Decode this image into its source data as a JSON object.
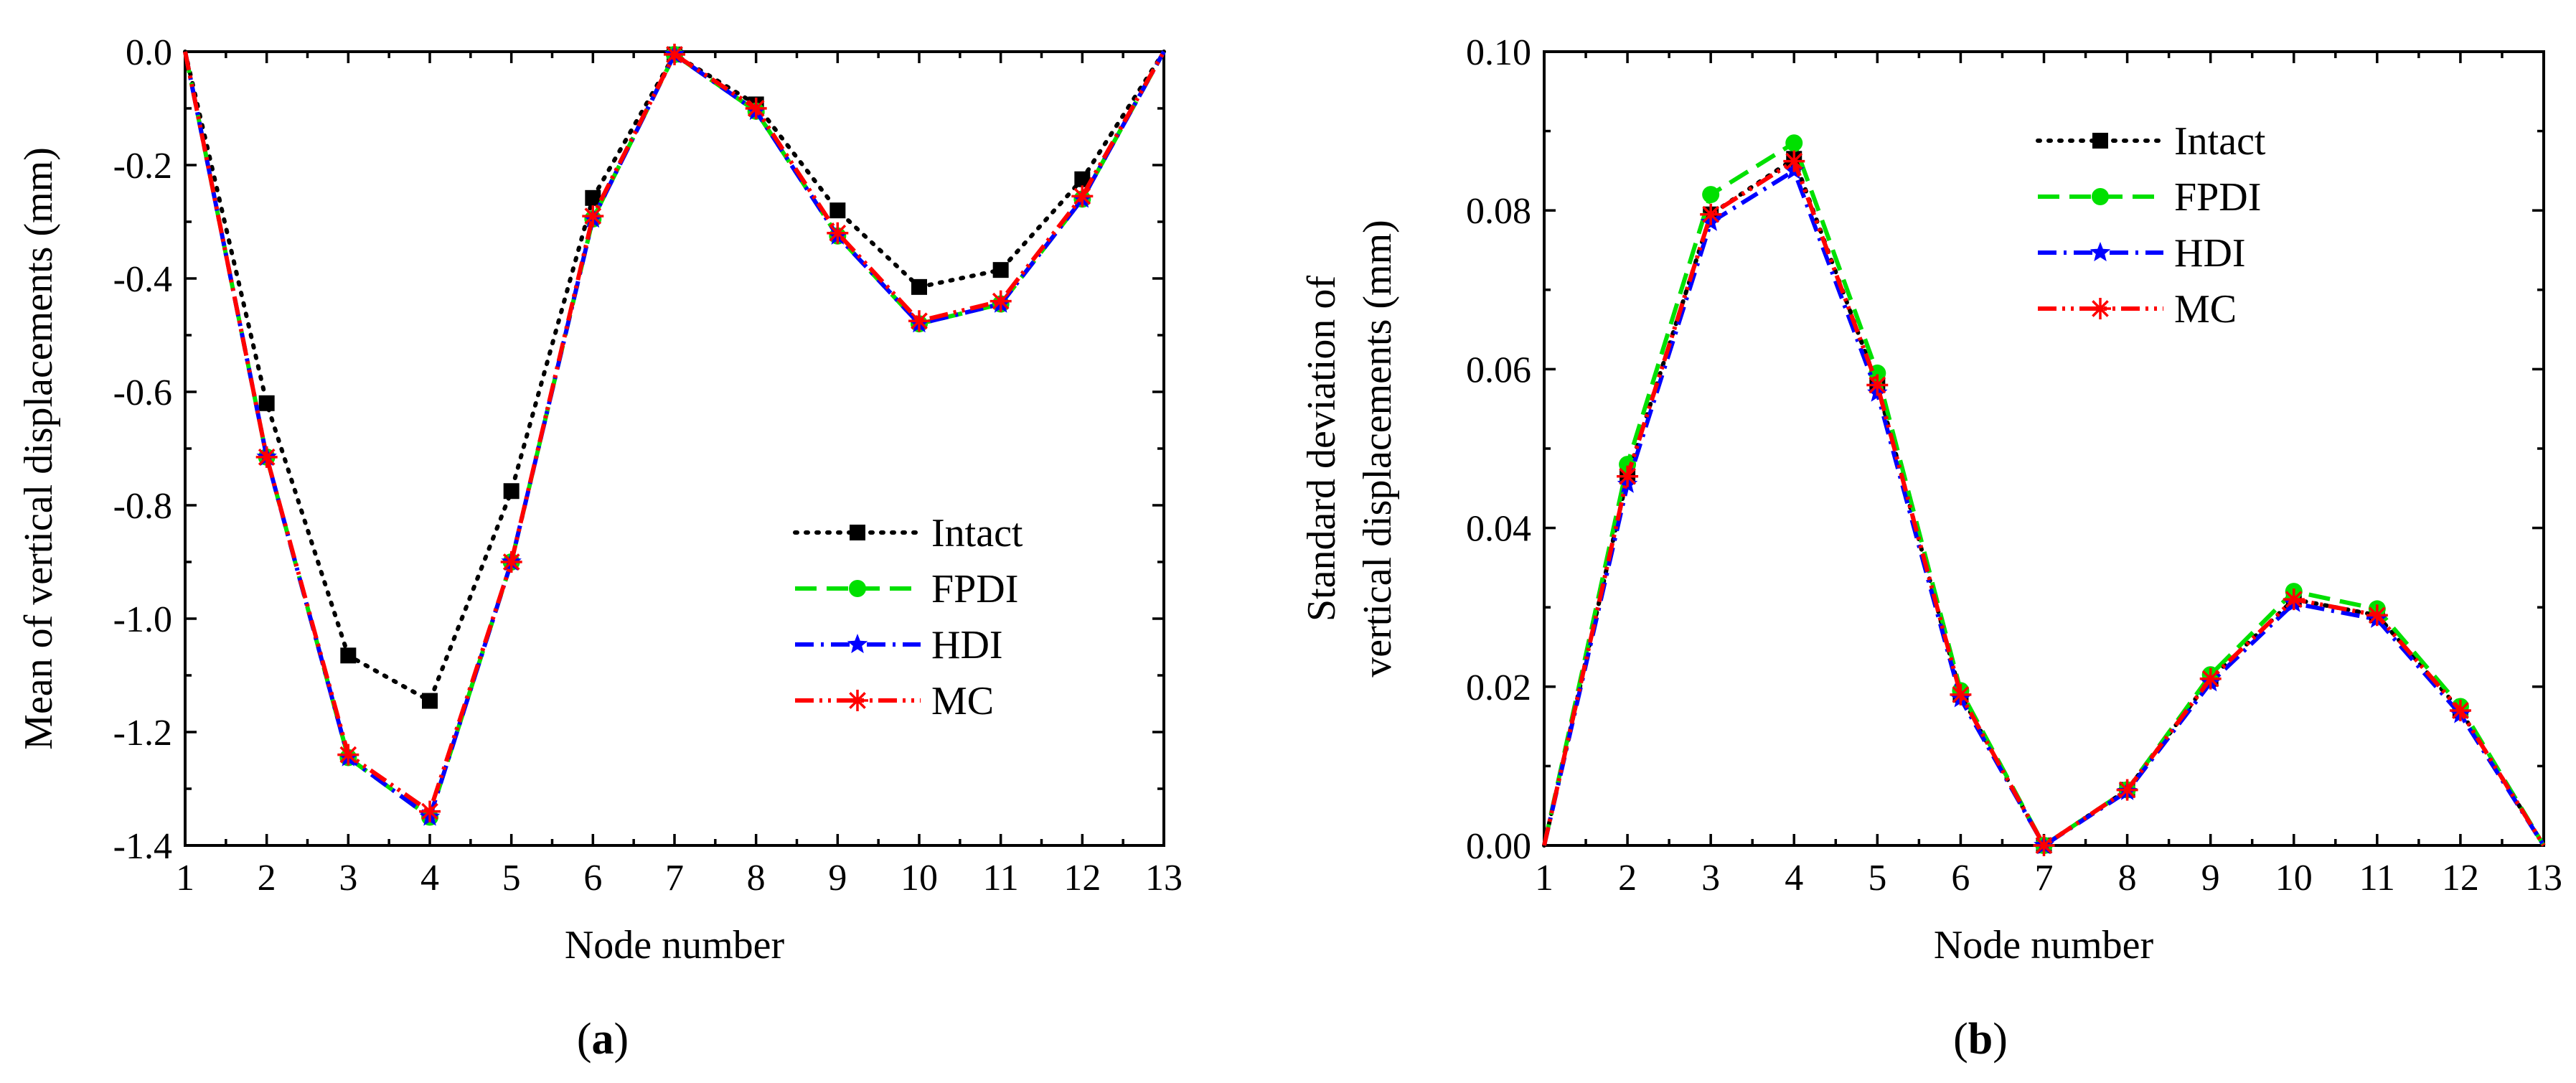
{
  "chart_data": [
    {
      "type": "line",
      "panel_label": "a",
      "xlabel": "Node number",
      "ylabel": "Mean of vertical displacements (mm)",
      "x": [
        1,
        2,
        3,
        4,
        5,
        6,
        7,
        8,
        9,
        10,
        11,
        12,
        13
      ],
      "xlim": [
        1,
        13
      ],
      "ylim": [
        -1.4,
        0.0
      ],
      "yticks": [
        -1.4,
        -1.2,
        -1.0,
        -0.8,
        -0.6,
        -0.4,
        -0.2,
        0.0
      ],
      "ytick_labels": [
        "-1.4",
        "-1.2",
        "-1.0",
        "-0.8",
        "-0.6",
        "-0.4",
        "-0.2",
        "0.0"
      ],
      "xtick_labels": [
        "1",
        "2",
        "3",
        "4",
        "5",
        "6",
        "7",
        "8",
        "9",
        "10",
        "11",
        "12",
        "13"
      ],
      "legend_position": "center-right",
      "series": [
        {
          "name": "Intact",
          "color": "#000000",
          "marker": "square",
          "dash": "dot",
          "values": [
            0.0,
            -0.62,
            -1.065,
            -1.145,
            -0.775,
            -0.258,
            -0.005,
            -0.093,
            -0.28,
            -0.415,
            -0.385,
            -0.225,
            0.0
          ]
        },
        {
          "name": "FPDI",
          "color": "#00e000",
          "marker": "circle",
          "dash": "dash",
          "values": [
            0.0,
            -0.715,
            -1.245,
            -1.35,
            -0.9,
            -0.295,
            -0.005,
            -0.105,
            -0.325,
            -0.48,
            -0.445,
            -0.26,
            0.0
          ]
        },
        {
          "name": "HDI",
          "color": "#0000ff",
          "marker": "star",
          "dash": "dashdot",
          "values": [
            0.0,
            -0.715,
            -1.245,
            -1.35,
            -0.9,
            -0.295,
            -0.005,
            -0.105,
            -0.325,
            -0.48,
            -0.445,
            -0.26,
            0.0
          ]
        },
        {
          "name": "MC",
          "color": "#ff0000",
          "marker": "asterisk",
          "dash": "dashdotdot",
          "values": [
            0.0,
            -0.715,
            -1.24,
            -1.34,
            -0.9,
            -0.29,
            -0.005,
            -0.1,
            -0.32,
            -0.475,
            -0.44,
            -0.255,
            0.0
          ]
        }
      ]
    },
    {
      "type": "line",
      "panel_label": "b",
      "xlabel": "Node number",
      "ylabel_line1": "Standard deviation of",
      "ylabel_line2": "vertical displacements (mm)",
      "x": [
        1,
        2,
        3,
        4,
        5,
        6,
        7,
        8,
        9,
        10,
        11,
        12,
        13
      ],
      "xlim": [
        1,
        13
      ],
      "ylim": [
        0.0,
        0.1
      ],
      "yticks": [
        0.0,
        0.02,
        0.04,
        0.06,
        0.08,
        0.1
      ],
      "ytick_labels": [
        "0.00",
        "0.02",
        "0.04",
        "0.06",
        "0.08",
        "0.10"
      ],
      "xtick_labels": [
        "1",
        "2",
        "3",
        "4",
        "5",
        "6",
        "7",
        "8",
        "9",
        "10",
        "11",
        "12",
        "13"
      ],
      "legend_position": "top-right",
      "series": [
        {
          "name": "Intact",
          "color": "#000000",
          "marker": "square",
          "dash": "dot",
          "values": [
            0.0,
            0.0465,
            0.0795,
            0.0865,
            0.058,
            0.019,
            0.0,
            0.007,
            0.021,
            0.031,
            0.029,
            0.017,
            0.0
          ]
        },
        {
          "name": "FPDI",
          "color": "#00e000",
          "marker": "circle",
          "dash": "dash",
          "values": [
            0.0,
            0.048,
            0.082,
            0.0885,
            0.0595,
            0.0195,
            0.0,
            0.007,
            0.0215,
            0.032,
            0.0298,
            0.0175,
            0.0
          ]
        },
        {
          "name": "HDI",
          "color": "#0000ff",
          "marker": "star",
          "dash": "dashdot",
          "values": [
            0.0,
            0.0455,
            0.0785,
            0.085,
            0.057,
            0.0185,
            0.0,
            0.0068,
            0.0205,
            0.0305,
            0.0285,
            0.0165,
            0.0
          ]
        },
        {
          "name": "MC",
          "color": "#ff0000",
          "marker": "asterisk",
          "dash": "dashdotdot",
          "values": [
            0.0,
            0.0465,
            0.0795,
            0.0862,
            0.058,
            0.019,
            0.0,
            0.007,
            0.021,
            0.031,
            0.029,
            0.017,
            0.0
          ]
        }
      ]
    }
  ]
}
